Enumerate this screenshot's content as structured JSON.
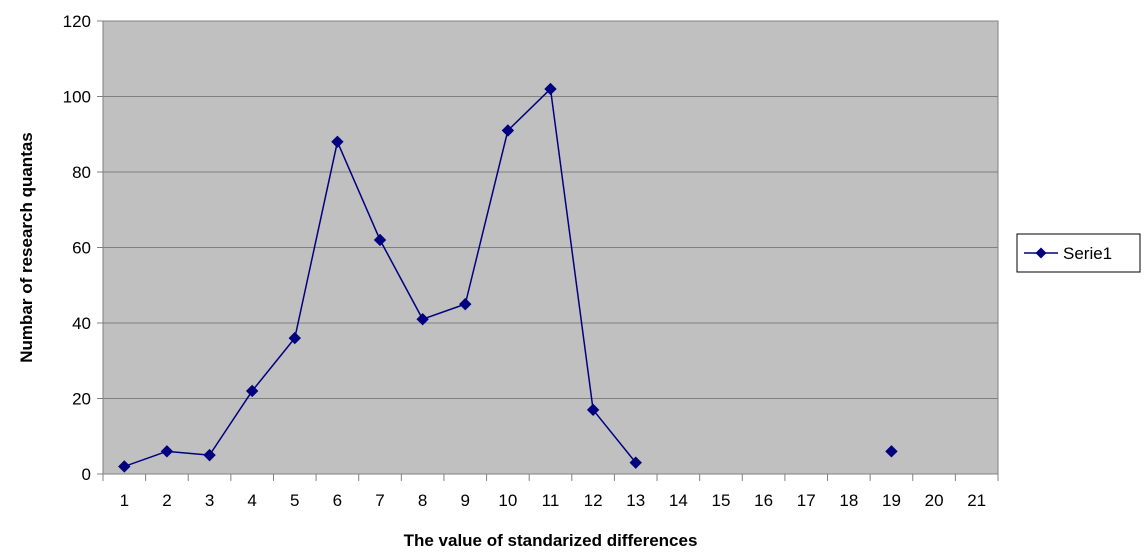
{
  "chart_data": {
    "type": "line",
    "title": "",
    "xlabel": "The value of standarized differences",
    "ylabel": "Numbar of research quantas",
    "categories": [
      "1",
      "2",
      "3",
      "4",
      "5",
      "6",
      "7",
      "8",
      "9",
      "10",
      "11",
      "12",
      "13",
      "14",
      "15",
      "16",
      "17",
      "18",
      "19",
      "20",
      "21"
    ],
    "ylim": [
      0,
      120
    ],
    "yticks": [
      0,
      20,
      40,
      60,
      80,
      100,
      120
    ],
    "grid": true,
    "legend_position": "right",
    "series": [
      {
        "name": "Serie1",
        "values": [
          2,
          6,
          5,
          22,
          36,
          88,
          62,
          41,
          45,
          91,
          102,
          17,
          3,
          null,
          null,
          null,
          null,
          null,
          6,
          null,
          null
        ]
      }
    ],
    "colors": {
      "plot_background": "#c0c0c0",
      "series": "#000080",
      "gridline": "#808080",
      "axis": "#808080"
    }
  }
}
